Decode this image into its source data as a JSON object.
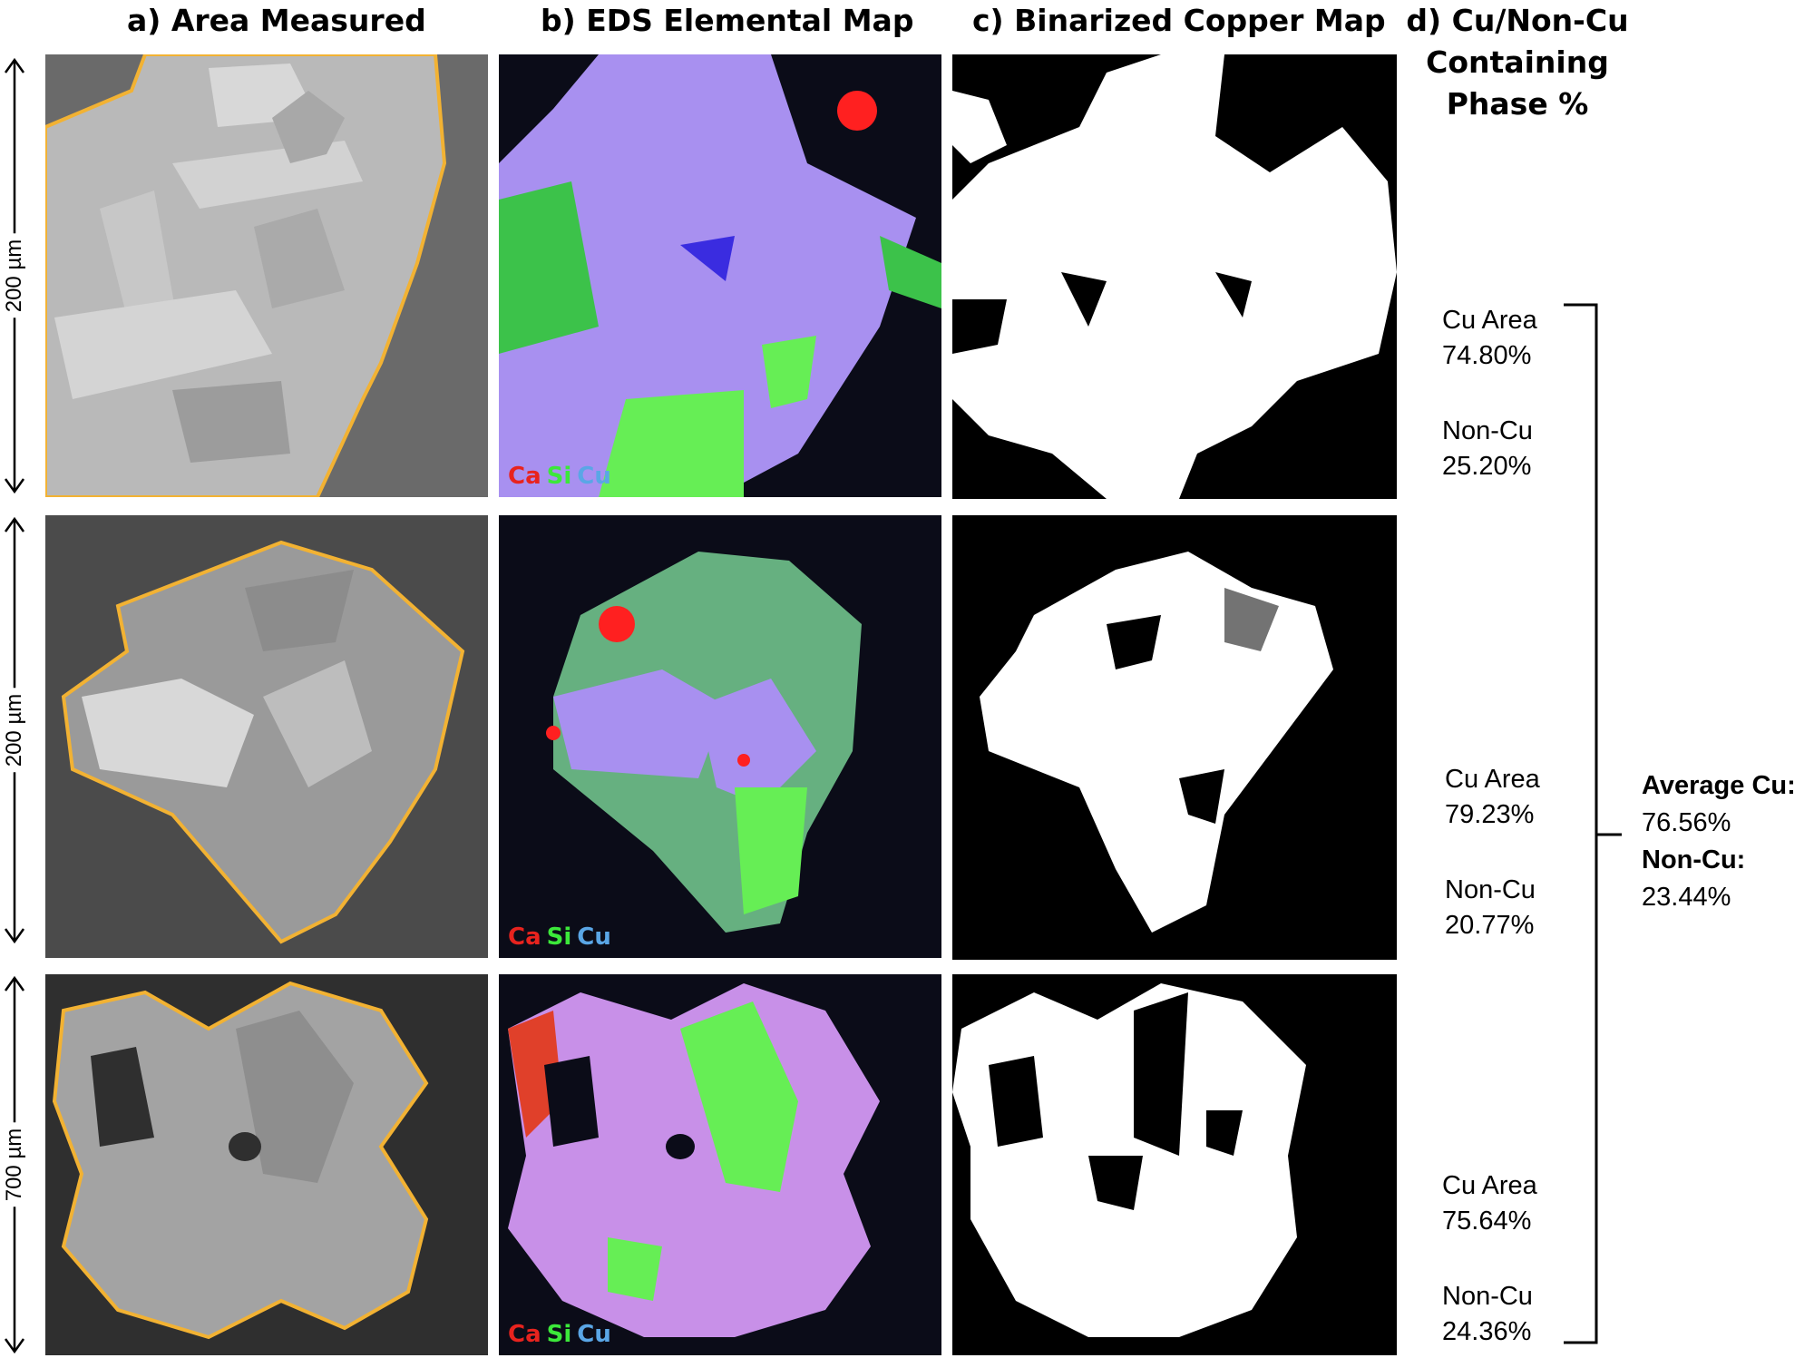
{
  "headers": {
    "a": "a) Area Measured",
    "b": "b) EDS Elemental Map",
    "c": "c) Binarized Copper Map",
    "d": "d) Cu/Non-Cu Containing Phase %"
  },
  "scale_bars": [
    "200 µm",
    "200 µm",
    "700 µm"
  ],
  "legend": {
    "ca": "Ca",
    "si": "Si",
    "cu": "Cu"
  },
  "results": [
    {
      "cu_label": "Cu Area",
      "cu_value": "74.80%",
      "non_label": "Non-Cu",
      "non_value": "25.20%"
    },
    {
      "cu_label": "Cu Area",
      "cu_value": "79.23%",
      "non_label": "Non-Cu",
      "non_value": "20.77%"
    },
    {
      "cu_label": "Cu Area",
      "cu_value": "75.64%",
      "non_label": "Non-Cu",
      "non_value": "24.36%"
    }
  ],
  "average": {
    "cu_label": "Average Cu:",
    "cu_value": "76.56%",
    "non_label": "Non-Cu:",
    "non_value": "23.44%"
  },
  "colors": {
    "outline": "#f2b233",
    "ca": "#e8231e",
    "si": "#3ce83a",
    "cu": "#5aa6e6",
    "cu_phase": "#a890f0",
    "si_phase": "#66ee55"
  }
}
